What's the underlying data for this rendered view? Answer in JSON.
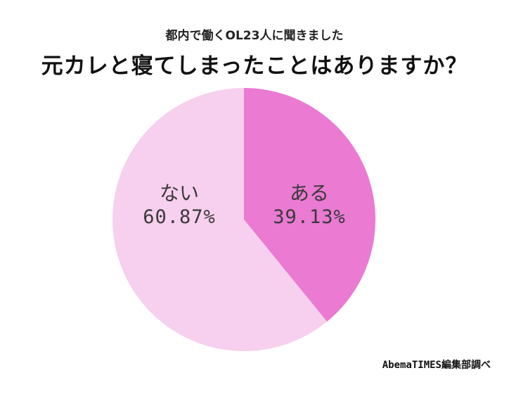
{
  "header": {
    "subtitle": "都内で働くOL23人に聞きました",
    "title": "元カレと寝てしまったことはありますか？"
  },
  "slices": [
    {
      "label": "ある",
      "pct_text": "39.13%",
      "color": "#ea7ad2"
    },
    {
      "label": "ない",
      "pct_text": "60.87%",
      "color": "#f6d0ee"
    }
  ],
  "source": "AbemaTIMES編集部調べ",
  "chart_data": {
    "type": "pie",
    "title": "元カレと寝てしまったことはありますか？",
    "subtitle": "都内で働くOL23人に聞きました",
    "categories": [
      "ある",
      "ない"
    ],
    "values": [
      39.13,
      60.87
    ],
    "colors": [
      "#ea7ad2",
      "#f6d0ee"
    ],
    "start_angle": "12 o'clock, clockwise",
    "legend": "none (labels inside slices)",
    "annotation": "AbemaTIMES編集部調べ"
  }
}
